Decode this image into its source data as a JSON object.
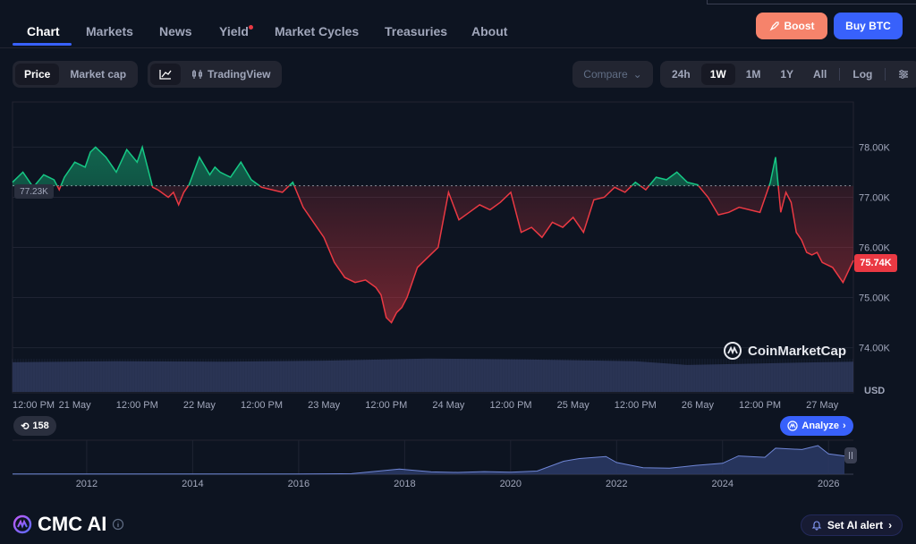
{
  "nav": {
    "tabs": [
      "Chart",
      "Markets",
      "News",
      "Yield",
      "Market Cycles",
      "Treasuries",
      "About"
    ],
    "boost_label": "Boost",
    "buy_label": "Buy BTC"
  },
  "toolbar": {
    "price_label": "Price",
    "marketcap_label": "Market cap",
    "tradingview_label": "TradingView",
    "compare_label": "Compare",
    "ranges": [
      "24h",
      "1W",
      "1M",
      "1Y",
      "All"
    ],
    "selected_range": "1W",
    "log_label": "Log"
  },
  "chart_data": {
    "type": "area",
    "reference_value": 77230,
    "reference_label": "77.23K",
    "current_value": 75740,
    "current_label": "75.74K",
    "y_ticks": [
      "78.00K",
      "77.00K",
      "76.00K",
      "75.00K",
      "74.00K"
    ],
    "y_unit": "USD",
    "ylim": [
      73100,
      78900
    ],
    "x_labels": [
      "12:00 PM",
      "21 May",
      "12:00 PM",
      "22 May",
      "12:00 PM",
      "23 May",
      "12:00 PM",
      "24 May",
      "12:00 PM",
      "25 May",
      "12:00 PM",
      "26 May",
      "12:00 PM",
      "27 May"
    ],
    "x_range_hours": [
      0,
      162
    ],
    "x_label_hours": [
      0,
      12,
      24,
      36,
      48,
      60,
      72,
      84,
      96,
      108,
      120,
      132,
      144,
      156
    ],
    "series": [
      {
        "x": [
          0,
          2,
          4,
          6,
          8,
          9,
          10,
          12,
          14,
          15,
          16,
          18,
          20,
          22,
          24,
          25,
          26,
          27,
          28,
          30,
          31,
          32,
          33,
          34,
          36,
          38,
          39,
          40,
          42,
          44,
          46,
          48,
          50,
          52,
          54,
          56,
          58,
          60,
          62,
          64,
          66,
          68,
          70,
          71,
          72,
          73,
          74,
          75,
          76,
          78,
          80,
          82,
          84,
          86,
          88,
          90,
          92,
          94,
          96,
          98,
          100,
          102,
          104,
          106,
          108,
          110,
          112,
          114,
          116,
          118,
          120,
          122,
          124,
          126,
          128,
          130,
          132,
          134,
          136,
          138,
          140,
          142,
          144,
          146,
          147,
          148,
          149,
          150,
          151,
          152,
          153,
          154,
          155,
          156,
          158,
          160,
          162
        ],
        "y": [
          77300,
          77500,
          77200,
          77450,
          77350,
          77150,
          77400,
          77700,
          77600,
          77900,
          78000,
          77800,
          77500,
          77950,
          77700,
          78000,
          77600,
          77200,
          77150,
          77000,
          77100,
          76850,
          77100,
          77250,
          77800,
          77450,
          77600,
          77500,
          77400,
          77700,
          77350,
          77200,
          77150,
          77100,
          77300,
          76800,
          76500,
          76200,
          75700,
          75400,
          75300,
          75350,
          75200,
          75050,
          74600,
          74500,
          74700,
          74800,
          75000,
          75600,
          75800,
          76000,
          77100,
          76550,
          76700,
          76850,
          76750,
          76900,
          77100,
          76300,
          76400,
          76200,
          76500,
          76400,
          76600,
          76300,
          76950,
          77000,
          77200,
          77100,
          77300,
          77150,
          77400,
          77350,
          77500,
          77300,
          77250,
          77000,
          76650,
          76700,
          76800,
          76750,
          76700,
          77300,
          77800,
          76700,
          77100,
          76900,
          76300,
          76150,
          75900,
          75850,
          75900,
          75700,
          75600,
          75300,
          75740
        ]
      }
    ],
    "volume": {
      "x": [
        0,
        20,
        40,
        60,
        80,
        100,
        120,
        130,
        140,
        150,
        162
      ],
      "y": [
        55,
        57,
        56,
        58,
        62,
        60,
        57,
        50,
        52,
        54,
        56
      ]
    },
    "overview": {
      "x_labels": [
        "2012",
        "2014",
        "2016",
        "2018",
        "2020",
        "2022",
        "2024",
        "2026"
      ],
      "x": [
        2010.6,
        2012,
        2013,
        2014,
        2015,
        2016,
        2017,
        2017.9,
        2018.5,
        2019,
        2019.5,
        2020,
        2020.5,
        2021,
        2021.3,
        2021.8,
        2022,
        2022.5,
        2023,
        2023.5,
        2024,
        2024.3,
        2024.8,
        2025,
        2025.5,
        2025.8,
        2026,
        2026.3
      ],
      "y": [
        0.01,
        0.01,
        0.01,
        0.01,
        0.01,
        0.01,
        0.02,
        0.2,
        0.09,
        0.07,
        0.1,
        0.08,
        0.12,
        0.5,
        0.6,
        0.68,
        0.45,
        0.25,
        0.23,
        0.34,
        0.42,
        0.7,
        0.65,
        1.0,
        0.95,
        1.1,
        0.78,
        0.7
      ]
    }
  },
  "watermark": "CoinMarketCap",
  "pill_count": "158",
  "analyze_label": "Analyze",
  "footer": {
    "cmc_ai_label": "CMC AI",
    "alert_label": "Set AI alert"
  },
  "colors": {
    "up": "#16c784",
    "down": "#ea3943",
    "accent": "#3861fb",
    "boost": "#f6836b"
  }
}
